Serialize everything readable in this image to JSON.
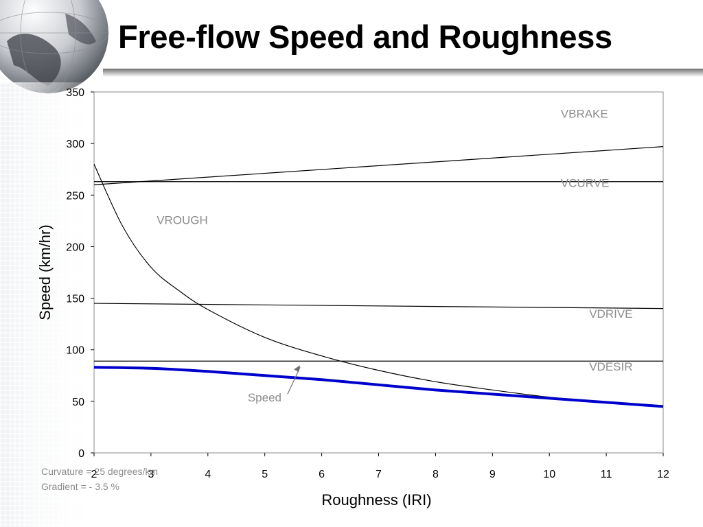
{
  "title": "Free-flow Speed and Roughness",
  "notes": {
    "curvature": "Curvature = 25 degrees/km",
    "gradient": "Gradient  = - 3.5 %"
  },
  "colors": {
    "speed_line": "#0000cc",
    "curve_line": "#000000",
    "annotation_text": "#8c8c8c"
  },
  "chart_data": {
    "type": "line",
    "title": "",
    "xlabel": "Roughness (IRI)",
    "ylabel": "Speed (km/hr)",
    "xlim": [
      2,
      12
    ],
    "ylim": [
      0,
      350
    ],
    "xticks": [
      2,
      3,
      4,
      5,
      6,
      7,
      8,
      9,
      10,
      11,
      12
    ],
    "yticks": [
      0,
      50,
      100,
      150,
      200,
      250,
      300,
      350
    ],
    "grid": false,
    "legend": "none",
    "series": [
      {
        "name": "VBRAKE",
        "x": [
          2,
          12
        ],
        "y": [
          260,
          297
        ]
      },
      {
        "name": "VCURVE",
        "x": [
          2,
          12
        ],
        "y": [
          263,
          263
        ]
      },
      {
        "name": "VROUGH",
        "x": [
          2,
          2.5,
          3,
          3.5,
          4,
          5,
          6,
          7,
          8,
          9,
          10,
          11,
          12
        ],
        "y": [
          280,
          220,
          180,
          157,
          139,
          112,
          94,
          80,
          69,
          61,
          54,
          49,
          45
        ]
      },
      {
        "name": "VDRIVE",
        "x": [
          2,
          12
        ],
        "y": [
          145,
          140
        ]
      },
      {
        "name": "VDESIR",
        "x": [
          2,
          12
        ],
        "y": [
          89,
          89
        ]
      },
      {
        "name": "Speed",
        "x": [
          2,
          3,
          4,
          5,
          6,
          7,
          8,
          9,
          10,
          11,
          12
        ],
        "y": [
          83,
          82,
          79,
          75,
          71,
          66,
          61,
          57,
          53,
          49,
          45
        ]
      }
    ]
  }
}
